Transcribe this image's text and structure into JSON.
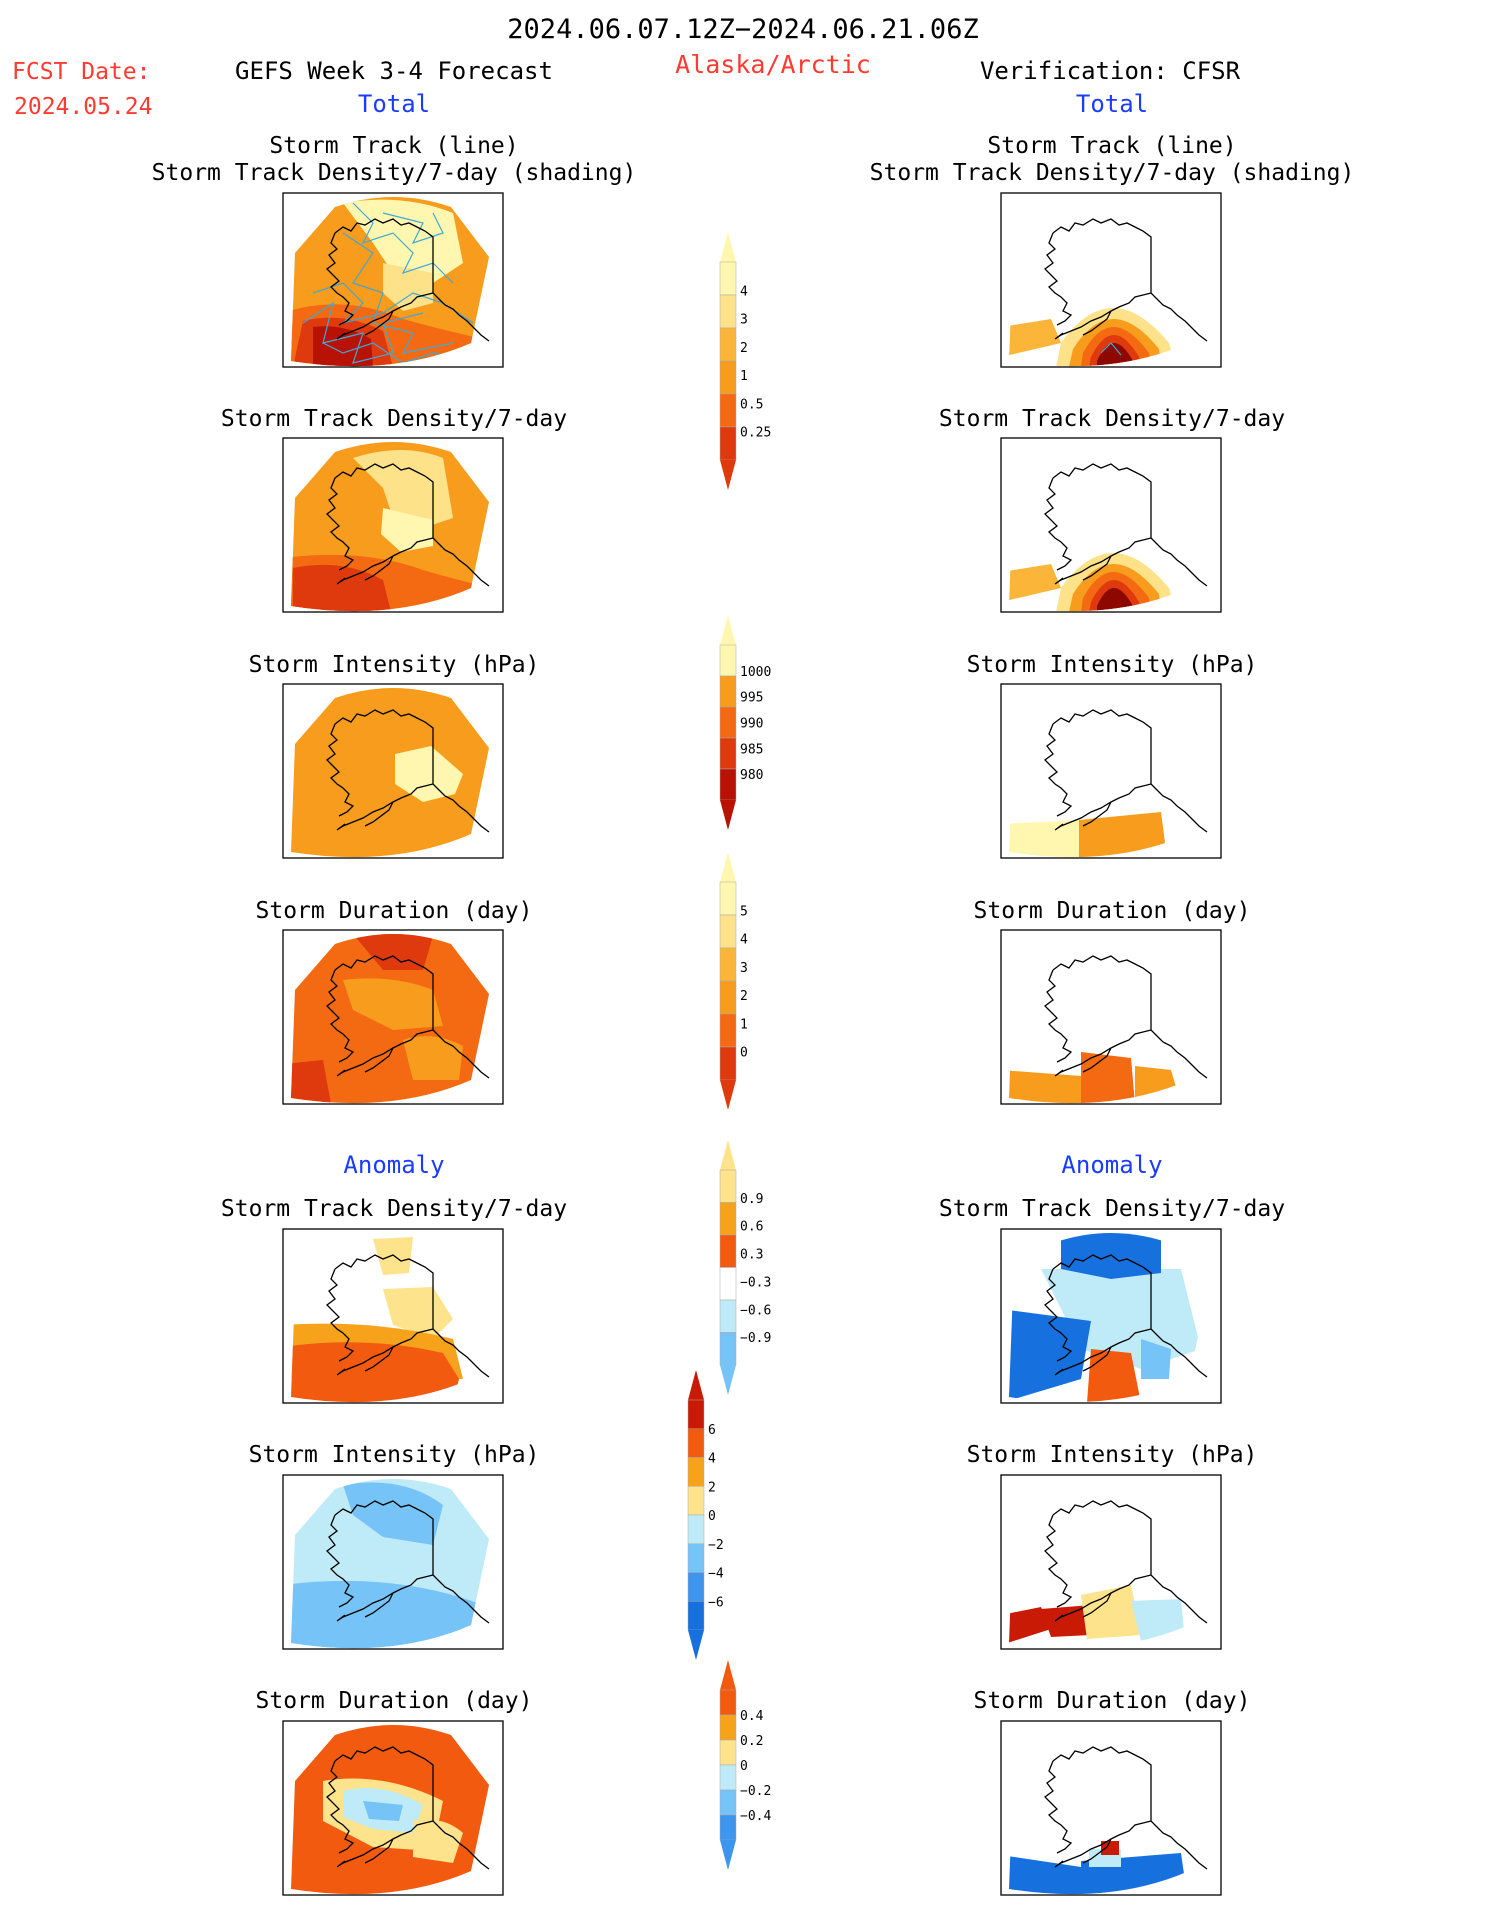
{
  "header": {
    "period": "2024.06.07.12Z−2024.06.21.06Z",
    "fcst_label": "FCST Date:",
    "fcst_date": "2024.05.24",
    "model": "GEFS Week 3-4 Forecast",
    "region": "Alaska/Arctic",
    "verification": "Verification: CFSR",
    "total_left": "Total",
    "total_right": "Total",
    "anomaly_left": "Anomaly",
    "anomaly_right": "Anomaly"
  },
  "panel_titles": {
    "track_line": "Storm Track (line)",
    "track_shading": "Storm Track Density/7-day (shading)",
    "density": "Storm Track Density/7-day",
    "intensity": "Storm Intensity (hPa)",
    "duration": "Storm Duration (day)"
  },
  "colors": {
    "title_red": "#ff3b30",
    "title_blue": "#1a3cff",
    "density": [
      "#fff7b0",
      "#fde28a",
      "#fbb63a",
      "#f79c1c",
      "#f46a12",
      "#de3a0e",
      "#b81204",
      "#8c0800"
    ],
    "anomaly": [
      "#1670dd",
      "#3d95ee",
      "#76c3f7",
      "#bfeaf8",
      "#ffffff",
      "#fde38b",
      "#f7a21b",
      "#f25a0f",
      "#c91a06"
    ],
    "track_line": "#3fa8d6"
  },
  "chart_data": [
    {
      "type": "heatmap",
      "panel": "forecast-total-track",
      "title": "Storm Track (line)",
      "subtitle": "Storm Track Density/7-day (shading)"
    },
    {
      "type": "heatmap",
      "panel": "verification-total-track",
      "title": "Storm Track (line)",
      "subtitle": "Storm Track Density/7-day (shading)"
    },
    {
      "type": "heatmap",
      "panel": "forecast-total-density",
      "title": "Storm Track Density/7-day"
    },
    {
      "type": "heatmap",
      "panel": "verification-total-density",
      "title": "Storm Track Density/7-day"
    },
    {
      "type": "heatmap",
      "panel": "forecast-total-intensity",
      "title": "Storm Intensity (hPa)"
    },
    {
      "type": "heatmap",
      "panel": "verification-total-intensity",
      "title": "Storm Intensity (hPa)"
    },
    {
      "type": "heatmap",
      "panel": "forecast-total-duration",
      "title": "Storm Duration (day)"
    },
    {
      "type": "heatmap",
      "panel": "verification-total-duration",
      "title": "Storm Duration (day)"
    },
    {
      "type": "heatmap",
      "panel": "forecast-anomaly-density",
      "title": "Storm Track Density/7-day"
    },
    {
      "type": "heatmap",
      "panel": "verification-anomaly-density",
      "title": "Storm Track Density/7-day"
    },
    {
      "type": "heatmap",
      "panel": "forecast-anomaly-intensity",
      "title": "Storm Intensity (hPa)"
    },
    {
      "type": "heatmap",
      "panel": "verification-anomaly-intensity",
      "title": "Storm Intensity (hPa)"
    },
    {
      "type": "heatmap",
      "panel": "forecast-anomaly-duration",
      "title": "Storm Duration (day)"
    },
    {
      "type": "heatmap",
      "panel": "verification-anomaly-duration",
      "title": "Storm Duration (day)"
    }
  ],
  "colorbars": [
    {
      "name": "density",
      "ticks": [
        "4",
        "3",
        "2",
        "1",
        "0.5",
        "0.25"
      ]
    },
    {
      "name": "intensity",
      "ticks": [
        "1000",
        "995",
        "990",
        "985",
        "980"
      ]
    },
    {
      "name": "duration",
      "ticks": [
        "5",
        "4",
        "3",
        "2",
        "1",
        "0"
      ]
    },
    {
      "name": "density-anomaly",
      "ticks": [
        "0.9",
        "0.6",
        "0.3",
        "−0.3",
        "−0.6",
        "−0.9"
      ]
    },
    {
      "name": "intensity-anomaly",
      "ticks": [
        "6",
        "4",
        "2",
        "0",
        "−2",
        "−4",
        "−6"
      ]
    },
    {
      "name": "duration-anomaly",
      "ticks": [
        "0.4",
        "0.2",
        "0",
        "−0.2",
        "−0.4"
      ]
    }
  ]
}
